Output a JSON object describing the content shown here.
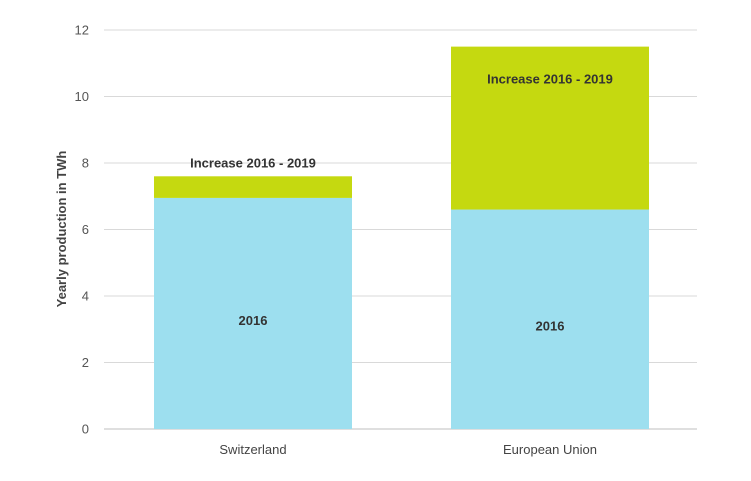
{
  "chart_data": {
    "type": "bar",
    "stacked": true,
    "categories": [
      "Switzerland",
      "European Union"
    ],
    "series": [
      {
        "name": "2016",
        "values": [
          6.95,
          6.6
        ],
        "color": "#9ddfef"
      },
      {
        "name": "Increase 2016 - 2019",
        "values": [
          0.65,
          4.9
        ],
        "color": "#c5d910"
      }
    ],
    "segment_labels": [
      [
        "2016",
        "Increase 2016 - 2019"
      ],
      [
        "2016",
        "Increase 2016 - 2019"
      ]
    ],
    "ylabel": "Yearly production in TWh",
    "xlabel": "",
    "title": "",
    "ylim": [
      0,
      12
    ],
    "yticks": [
      0,
      2,
      4,
      6,
      8,
      10,
      12
    ],
    "grid": true,
    "legend": "none"
  }
}
